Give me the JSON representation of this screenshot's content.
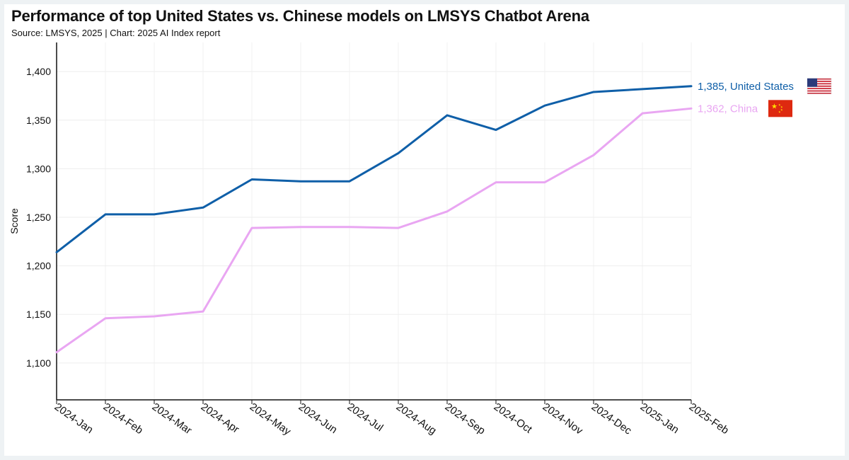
{
  "chart_data": {
    "type": "line",
    "title": "Performance of top United States vs. Chinese models on LMSYS Chatbot Arena",
    "subtitle": "Source: LMSYS, 2025 | Chart: 2025 AI Index report",
    "xlabel": "",
    "ylabel": "Score",
    "categories": [
      "2024-Jan",
      "2024-Feb",
      "2024-Mar",
      "2024-Apr",
      "2024-May",
      "2024-Jun",
      "2024-Jul",
      "2024-Aug",
      "2024-Sep",
      "2024-Oct",
      "2024-Nov",
      "2024-Dec",
      "2025-Jan",
      "2025-Feb"
    ],
    "yticks": [
      1100,
      1150,
      1200,
      1250,
      1300,
      1350,
      1400
    ],
    "ytick_labels": [
      "1,100",
      "1,150",
      "1,200",
      "1,250",
      "1,300",
      "1,350",
      "1,400"
    ],
    "ylim": [
      1062,
      1430
    ],
    "grid": true,
    "series": [
      {
        "name": "United States",
        "color": "#0f5fa8",
        "values": [
          1214,
          1253,
          1253,
          1260,
          1289,
          1287,
          1287,
          1316,
          1355,
          1340,
          1365,
          1379,
          1382,
          1385
        ],
        "end_label": "1,385, United States",
        "flag_icon": "us-flag-icon"
      },
      {
        "name": "China",
        "color": "#e9a6f2",
        "values": [
          1111,
          1146,
          1148,
          1153,
          1239,
          1240,
          1240,
          1239,
          1256,
          1286,
          1286,
          1314,
          1357,
          1362
        ],
        "end_label": "1,362, China",
        "flag_icon": "china-flag-icon"
      }
    ]
  }
}
